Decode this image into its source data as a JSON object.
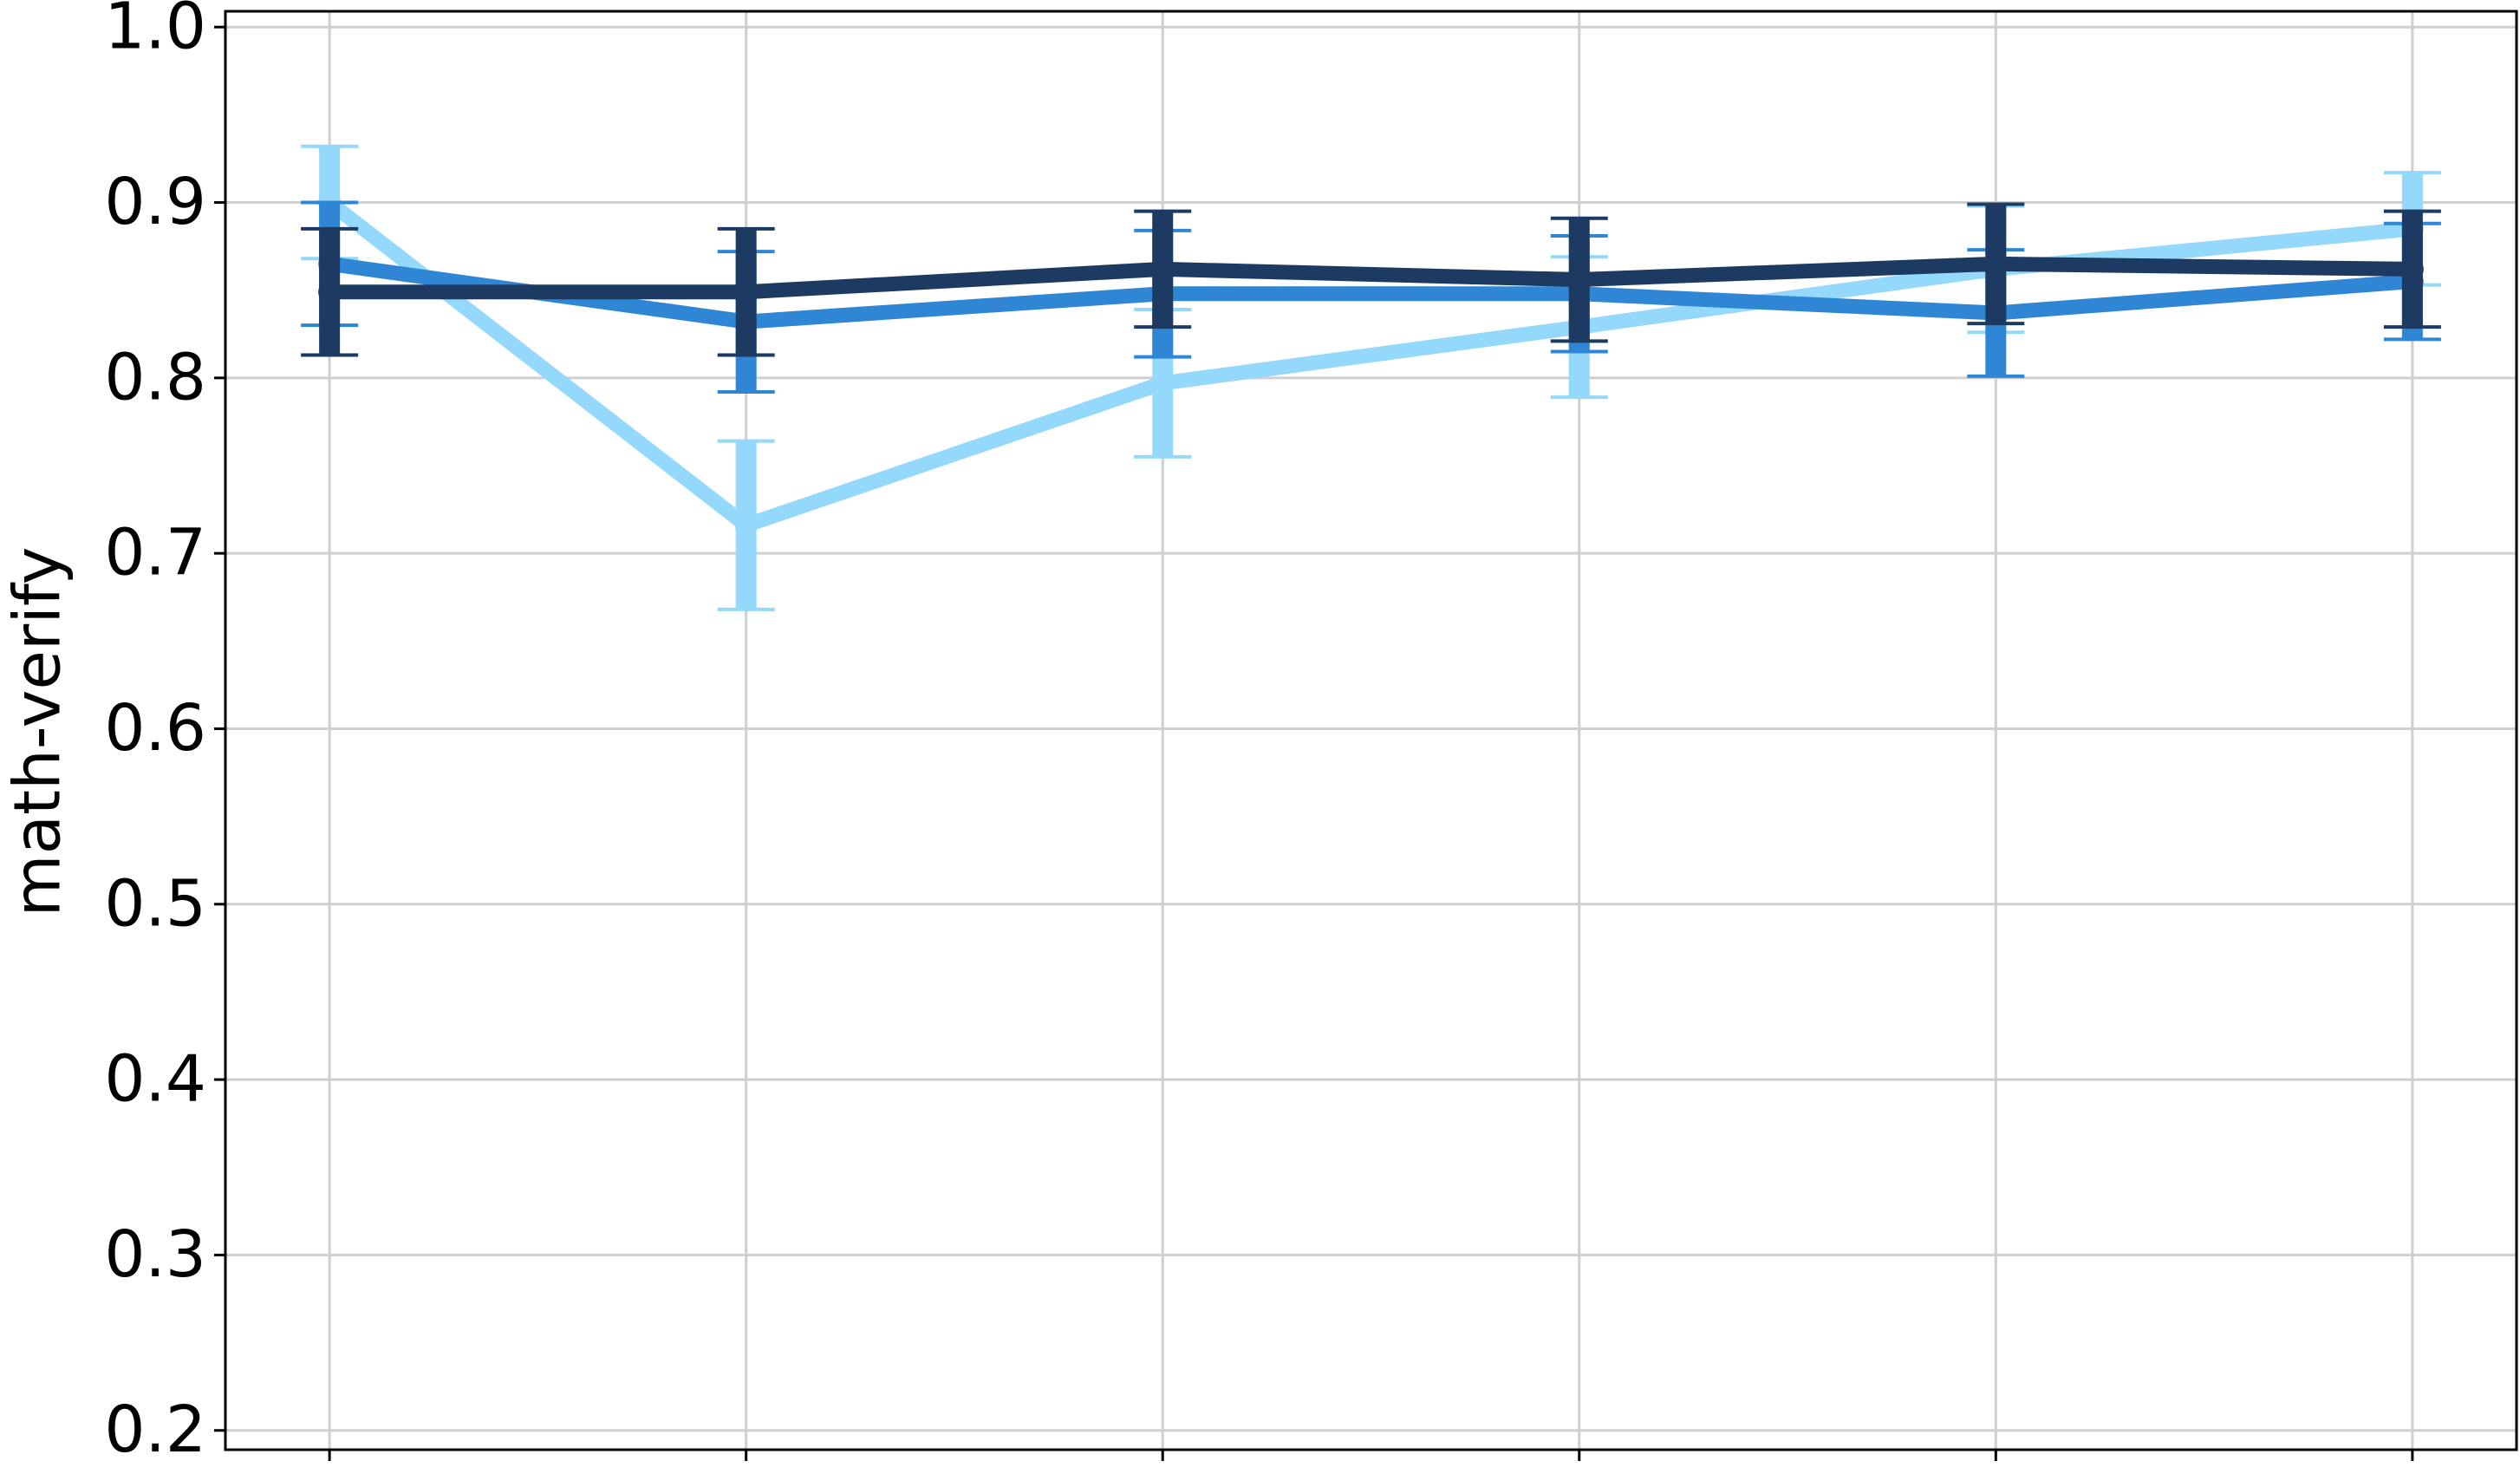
{
  "chart_data": {
    "type": "line",
    "y_label": "math-verify",
    "categories": [
      null,
      null,
      null,
      null,
      null,
      null
    ],
    "series": [
      {
        "color": "#94d8fb",
        "values": [
          0.9,
          0.716,
          0.797,
          0.829,
          0.862,
          0.885
        ],
        "errors": [
          0.032,
          0.048,
          0.042,
          0.04,
          0.036,
          0.032
        ]
      },
      {
        "color": "#2e86d4",
        "values": [
          0.865,
          0.832,
          0.848,
          0.848,
          0.837,
          0.855
        ],
        "errors": [
          0.035,
          0.04,
          0.036,
          0.033,
          0.036,
          0.033
        ]
      },
      {
        "color": "#1d3a63",
        "values": [
          0.849,
          0.849,
          0.862,
          0.856,
          0.865,
          0.862
        ],
        "errors": [
          0.036,
          0.036,
          0.033,
          0.035,
          0.034,
          0.033
        ]
      }
    ],
    "ylim": [
      0.189,
      1.009
    ],
    "yticks": [
      0.2,
      0.3,
      0.4,
      0.5,
      0.6,
      0.7,
      0.8,
      0.9,
      {
        "value": 1.0,
        "label": "1.0"
      }
    ],
    "grid": true
  }
}
